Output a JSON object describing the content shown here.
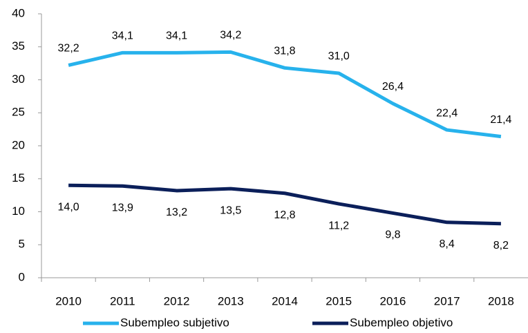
{
  "chart_data": {
    "type": "line",
    "categories": [
      "2010",
      "2011",
      "2012",
      "2013",
      "2014",
      "2015",
      "2016",
      "2017",
      "2018"
    ],
    "series": [
      {
        "name": "Subempleo subjetivo",
        "color": "#27b2ec",
        "values": [
          32.2,
          34.1,
          34.1,
          34.2,
          31.8,
          31.0,
          26.4,
          22.4,
          21.4
        ],
        "value_labels": [
          "32,2",
          "34,1",
          "34,1",
          "34,2",
          "31,8",
          "31,0",
          "26,4",
          "22,4",
          "21,4"
        ]
      },
      {
        "name": "Subempleo objetivo",
        "color": "#0b1f5a",
        "values": [
          14.0,
          13.9,
          13.2,
          13.5,
          12.8,
          11.2,
          9.8,
          8.4,
          8.2
        ],
        "value_labels": [
          "14,0",
          "13,9",
          "13,2",
          "13,5",
          "12,8",
          "11,2",
          "9,8",
          "8,4",
          "8,2"
        ]
      }
    ],
    "ylim": [
      0,
      40
    ],
    "yticks": [
      0,
      5,
      10,
      15,
      20,
      25,
      30,
      35,
      40
    ],
    "legend": "bottom"
  }
}
